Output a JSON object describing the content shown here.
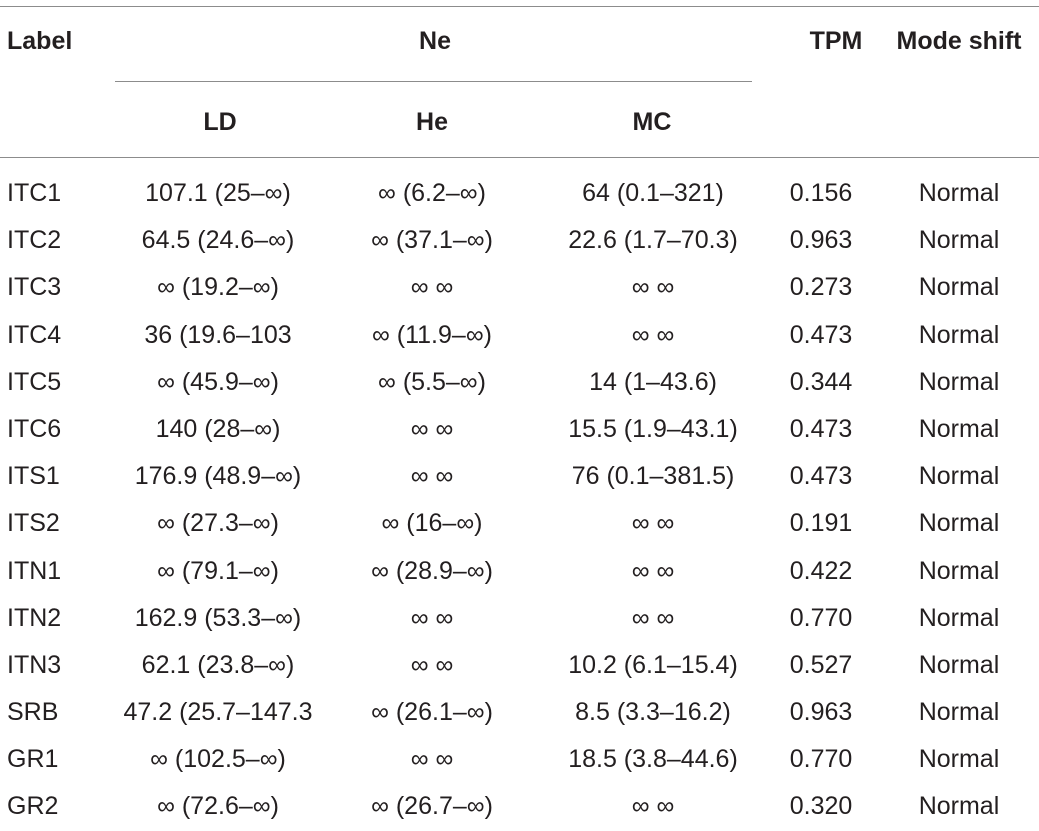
{
  "table": {
    "headers": {
      "label": "Label",
      "ne": "Ne",
      "ld": "LD",
      "he": "He",
      "mc": "MC",
      "tpm": "TPM",
      "mode_shift": "Mode shift"
    },
    "rows": [
      {
        "label": "ITC1",
        "ld": "107.1 (25–∞)",
        "he": "∞ (6.2–∞)",
        "mc": "64 (0.1–321)",
        "tpm": "0.156",
        "mode": "Normal"
      },
      {
        "label": "ITC2",
        "ld": "64.5 (24.6–∞)",
        "he": "∞ (37.1–∞)",
        "mc": "22.6 (1.7–70.3)",
        "tpm": "0.963",
        "mode": "Normal"
      },
      {
        "label": "ITC3",
        "ld": "∞ (19.2–∞)",
        "he": "∞ ∞",
        "mc": "∞ ∞",
        "tpm": "0.273",
        "mode": "Normal"
      },
      {
        "label": "ITC4",
        "ld": "36 (19.6–103",
        "he": "∞ (11.9–∞)",
        "mc": "∞ ∞",
        "tpm": "0.473",
        "mode": "Normal"
      },
      {
        "label": "ITC5",
        "ld": "∞ (45.9–∞)",
        "he": "∞ (5.5–∞)",
        "mc": "14 (1–43.6)",
        "tpm": "0.344",
        "mode": "Normal"
      },
      {
        "label": "ITC6",
        "ld": "140 (28–∞)",
        "he": "∞ ∞",
        "mc": "15.5 (1.9–43.1)",
        "tpm": "0.473",
        "mode": "Normal"
      },
      {
        "label": "ITS1",
        "ld": "176.9 (48.9–∞)",
        "he": "∞ ∞",
        "mc": "76 (0.1–381.5)",
        "tpm": "0.473",
        "mode": "Normal"
      },
      {
        "label": "ITS2",
        "ld": "∞ (27.3–∞)",
        "he": "∞ (16–∞)",
        "mc": "∞ ∞",
        "tpm": "0.191",
        "mode": "Normal"
      },
      {
        "label": "ITN1",
        "ld": "∞ (79.1–∞)",
        "he": "∞ (28.9–∞)",
        "mc": "∞ ∞",
        "tpm": "0.422",
        "mode": "Normal"
      },
      {
        "label": "ITN2",
        "ld": "162.9 (53.3–∞)",
        "he": "∞ ∞",
        "mc": "∞ ∞",
        "tpm": "0.770",
        "mode": "Normal"
      },
      {
        "label": "ITN3",
        "ld": "62.1 (23.8–∞)",
        "he": "∞ ∞",
        "mc": "10.2 (6.1–15.4)",
        "tpm": "0.527",
        "mode": "Normal"
      },
      {
        "label": "SRB",
        "ld": "47.2 (25.7–147.3",
        "he": "∞ (26.1–∞)",
        "mc": "8.5 (3.3–16.2)",
        "tpm": "0.963",
        "mode": "Normal"
      },
      {
        "label": "GR1",
        "ld": "∞ (102.5–∞)",
        "he": "∞ ∞",
        "mc": "18.5 (3.8–44.6)",
        "tpm": "0.770",
        "mode": "Normal"
      },
      {
        "label": "GR2",
        "ld": "∞ (72.6–∞)",
        "he": "∞ (26.7–∞)",
        "mc": "∞ ∞",
        "tpm": "0.320",
        "mode": "Normal"
      }
    ]
  }
}
